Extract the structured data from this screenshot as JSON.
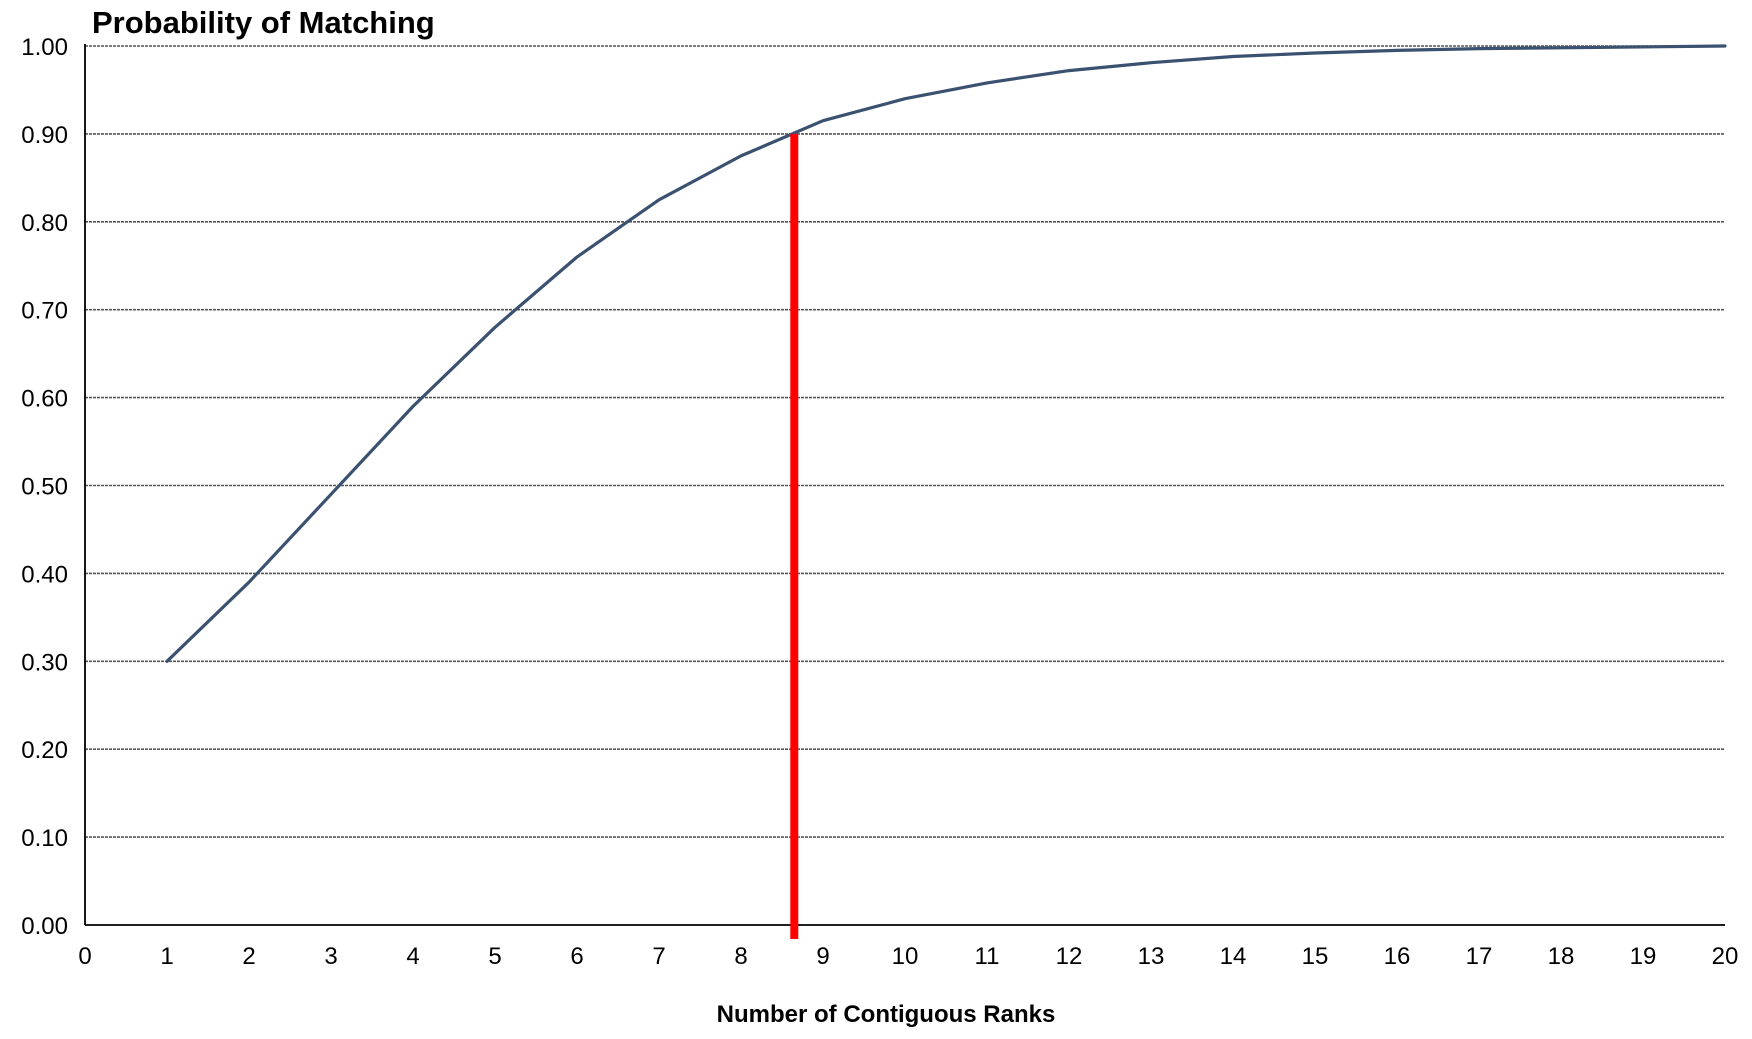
{
  "chart_data": {
    "type": "line",
    "title": "Probability of Matching",
    "xlabel": "Number of Contiguous Ranks",
    "ylabel": "",
    "xlim": [
      0,
      20
    ],
    "ylim": [
      0,
      1
    ],
    "grid": true,
    "x_ticks": [
      "0",
      "1",
      "2",
      "3",
      "4",
      "5",
      "6",
      "7",
      "8",
      "9",
      "10",
      "11",
      "12",
      "13",
      "14",
      "15",
      "16",
      "17",
      "18",
      "19",
      "20"
    ],
    "y_ticks": [
      "0.00",
      "0.10",
      "0.20",
      "0.30",
      "0.40",
      "0.50",
      "0.60",
      "0.70",
      "0.80",
      "0.90",
      "1.00"
    ],
    "series": [
      {
        "x": [
          1,
          2,
          3,
          4,
          5,
          6,
          7,
          8,
          9,
          10,
          11,
          12,
          13,
          14,
          15,
          16,
          17,
          18,
          19,
          20
        ],
        "values": [
          0.3,
          0.39,
          0.49,
          0.59,
          0.68,
          0.76,
          0.825,
          0.875,
          0.915,
          0.94,
          0.958,
          0.972,
          0.981,
          0.988,
          0.992,
          0.995,
          0.997,
          0.998,
          0.999,
          1.0
        ],
        "color": "#3b5170"
      }
    ],
    "reference_line": {
      "x": 8.65,
      "y_top": 0.9,
      "color": "#ff0000"
    }
  }
}
